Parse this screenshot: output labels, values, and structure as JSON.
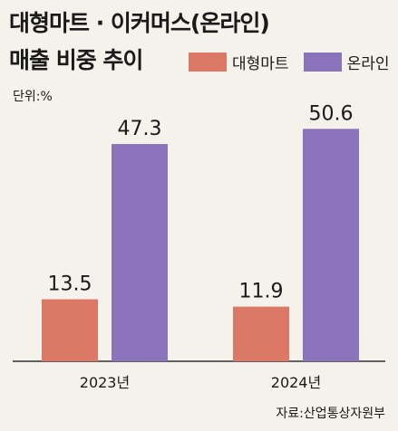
{
  "title_line1": "대형마트 · 이커머스(온라인)",
  "title_line2": "매출 비중 추이",
  "unit": "단위:%",
  "source": "자료:산업통상자원부",
  "colors": {
    "offline": "#db7966",
    "online": "#8b74bb",
    "axis": "#333333",
    "background": "#f4f2ea"
  },
  "chart_data": {
    "type": "bar",
    "title": "대형마트 · 이커머스(온라인) 매출 비중 추이",
    "categories": [
      "2023년",
      "2024년"
    ],
    "series": [
      {
        "name": "대형마트",
        "values": [
          13.5,
          11.9
        ]
      },
      {
        "name": "온라인",
        "values": [
          47.3,
          50.6
        ]
      }
    ],
    "ylabel": "단위:%",
    "ylim": [
      0,
      55
    ],
    "grid": false,
    "legend": "top-right"
  }
}
